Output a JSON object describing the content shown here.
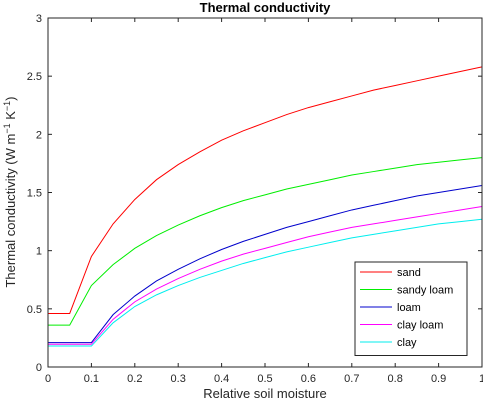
{
  "chart_data": {
    "type": "line",
    "title": "Thermal conductivity",
    "xlabel": "Relative soil moisture",
    "ylabel_main": "Thermal conductivity (W m",
    "ylabel_sup1": "−1",
    "ylabel_mid": " K",
    "ylabel_sup2": "−1",
    "ylabel_end": ")",
    "xlim": [
      0,
      1
    ],
    "ylim": [
      0,
      3
    ],
    "xticks": [
      0,
      0.1,
      0.2,
      0.3,
      0.4,
      0.5,
      0.6,
      0.7,
      0.8,
      0.9,
      1
    ],
    "xtick_labels": [
      "0",
      "0.1",
      "0.2",
      "0.3",
      "0.4",
      "0.5",
      "0.6",
      "0.7",
      "0.8",
      "0.9",
      "1"
    ],
    "yticks": [
      0,
      0.5,
      1,
      1.5,
      2,
      2.5,
      3
    ],
    "ytick_labels": [
      "0",
      "0.5",
      "1",
      "1.5",
      "2",
      "2.5",
      "3"
    ],
    "grid": false,
    "legend_position": "bottom-right",
    "x": [
      0,
      0.05,
      0.1,
      0.15,
      0.2,
      0.25,
      0.3,
      0.35,
      0.4,
      0.45,
      0.5,
      0.55,
      0.6,
      0.65,
      0.7,
      0.75,
      0.8,
      0.85,
      0.9,
      0.95,
      1
    ],
    "series": [
      {
        "name": "sand",
        "color": "#ff0000",
        "values": [
          0.46,
          0.46,
          0.95,
          1.23,
          1.44,
          1.61,
          1.74,
          1.85,
          1.95,
          2.03,
          2.1,
          2.17,
          2.23,
          2.28,
          2.33,
          2.38,
          2.42,
          2.46,
          2.5,
          2.54,
          2.58
        ]
      },
      {
        "name": "sandy loam",
        "color": "#00ee00",
        "values": [
          0.36,
          0.36,
          0.7,
          0.88,
          1.02,
          1.13,
          1.22,
          1.3,
          1.37,
          1.43,
          1.48,
          1.53,
          1.57,
          1.61,
          1.65,
          1.68,
          1.71,
          1.74,
          1.76,
          1.78,
          1.8
        ]
      },
      {
        "name": "loam",
        "color": "#0000cc",
        "values": [
          0.21,
          0.21,
          0.21,
          0.45,
          0.61,
          0.74,
          0.84,
          0.93,
          1.01,
          1.08,
          1.14,
          1.2,
          1.25,
          1.3,
          1.35,
          1.39,
          1.43,
          1.47,
          1.5,
          1.53,
          1.56
        ]
      },
      {
        "name": "clay loam",
        "color": "#ff00ff",
        "values": [
          0.195,
          0.195,
          0.195,
          0.41,
          0.56,
          0.67,
          0.76,
          0.84,
          0.91,
          0.97,
          1.02,
          1.07,
          1.12,
          1.16,
          1.2,
          1.23,
          1.26,
          1.29,
          1.32,
          1.35,
          1.38
        ]
      },
      {
        "name": "clay",
        "color": "#00eeee",
        "values": [
          0.18,
          0.18,
          0.18,
          0.38,
          0.52,
          0.62,
          0.7,
          0.77,
          0.83,
          0.89,
          0.94,
          0.99,
          1.03,
          1.07,
          1.11,
          1.14,
          1.17,
          1.2,
          1.23,
          1.25,
          1.27
        ]
      }
    ]
  }
}
